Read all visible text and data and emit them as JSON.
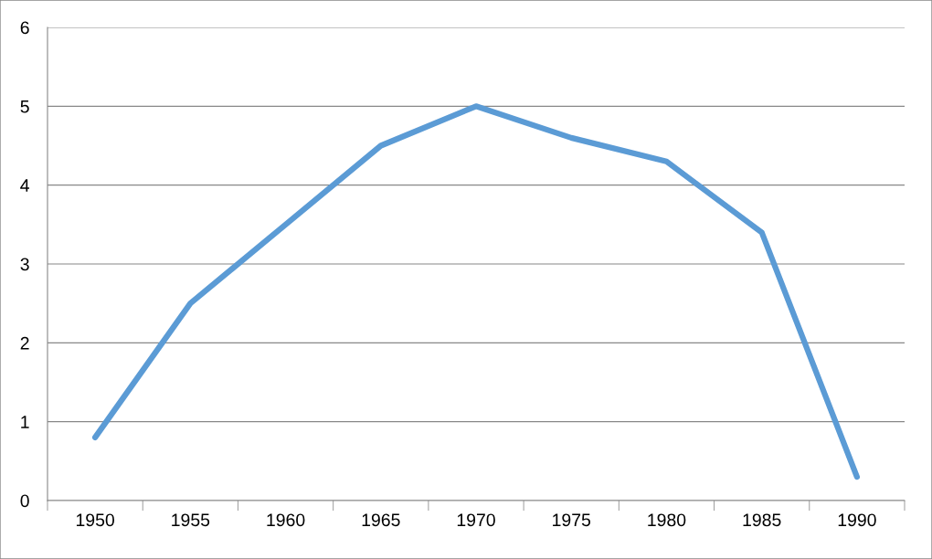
{
  "chart_data": {
    "type": "line",
    "categories": [
      "1950",
      "1955",
      "1960",
      "1965",
      "1970",
      "1975",
      "1980",
      "1985",
      "1990"
    ],
    "series": [
      {
        "color": "#5b9bd5",
        "values": [
          0.8,
          2.5,
          3.5,
          4.5,
          5.0,
          4.6,
          4.3,
          3.4,
          0.3
        ]
      }
    ],
    "ylim": [
      0,
      6
    ],
    "yticks": [
      0,
      1,
      2,
      3,
      4,
      5,
      6
    ],
    "grid": "y",
    "legend": false,
    "marker": "none",
    "line_style": "solid"
  }
}
